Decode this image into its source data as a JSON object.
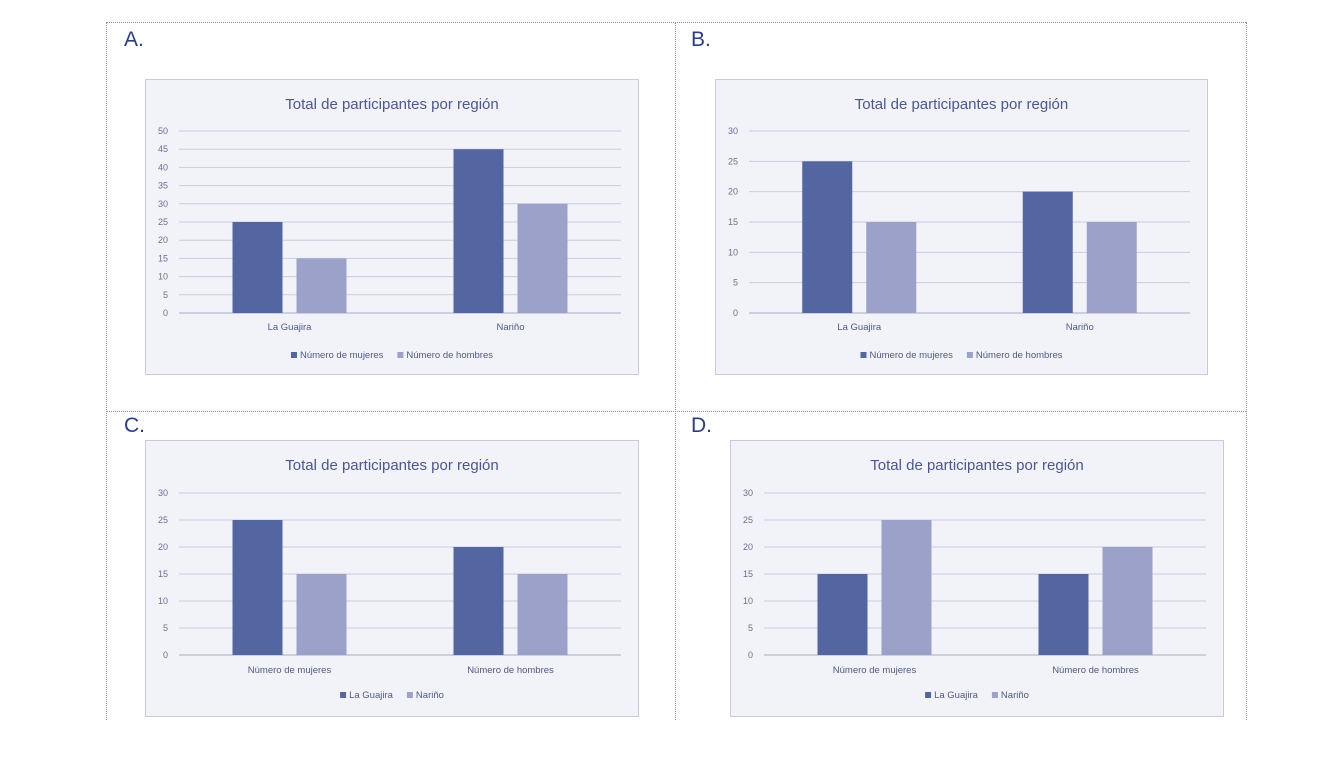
{
  "colors": {
    "primary": "#5466a2",
    "secondary": "#9ba1c8"
  },
  "chart_data": [
    {
      "panel": "A.",
      "type": "bar",
      "title": "Total de participantes por región",
      "categories": [
        "La Guajira",
        "Nariño"
      ],
      "series": [
        {
          "name": "Número de mujeres",
          "values": [
            25,
            45
          ]
        },
        {
          "name": "Número de hombres",
          "values": [
            15,
            30
          ]
        }
      ],
      "ylim": [
        0,
        50
      ],
      "yticks": [
        0,
        5,
        10,
        15,
        20,
        25,
        30,
        35,
        40,
        45,
        50
      ],
      "grid": true,
      "legend": "bottom"
    },
    {
      "panel": "B.",
      "type": "bar",
      "title": "Total de participantes por región",
      "categories": [
        "La Guajira",
        "Nariño"
      ],
      "series": [
        {
          "name": "Número de mujeres",
          "values": [
            25,
            20
          ]
        },
        {
          "name": "Número de hombres",
          "values": [
            15,
            15
          ]
        }
      ],
      "ylim": [
        0,
        30
      ],
      "yticks": [
        0,
        5,
        10,
        15,
        20,
        25,
        30
      ],
      "grid": true,
      "legend": "bottom"
    },
    {
      "panel": "C.",
      "type": "bar",
      "title": "Total de participantes por región",
      "categories": [
        "Número de mujeres",
        "Número de hombres"
      ],
      "series": [
        {
          "name": "La Guajira",
          "values": [
            25,
            20
          ]
        },
        {
          "name": "Nariño",
          "values": [
            15,
            15
          ]
        }
      ],
      "ylim": [
        0,
        30
      ],
      "yticks": [
        0,
        5,
        10,
        15,
        20,
        25,
        30
      ],
      "grid": true,
      "legend": "bottom"
    },
    {
      "panel": "D.",
      "type": "bar",
      "title": "Total de participantes por región",
      "categories": [
        "Número de mujeres",
        "Número de hombres"
      ],
      "series": [
        {
          "name": "La Guajira",
          "values": [
            15,
            15
          ]
        },
        {
          "name": "Nariño",
          "values": [
            25,
            20
          ]
        }
      ],
      "ylim": [
        0,
        30
      ],
      "yticks": [
        0,
        5,
        10,
        15,
        20,
        25,
        30
      ],
      "grid": true,
      "legend": "bottom"
    }
  ]
}
